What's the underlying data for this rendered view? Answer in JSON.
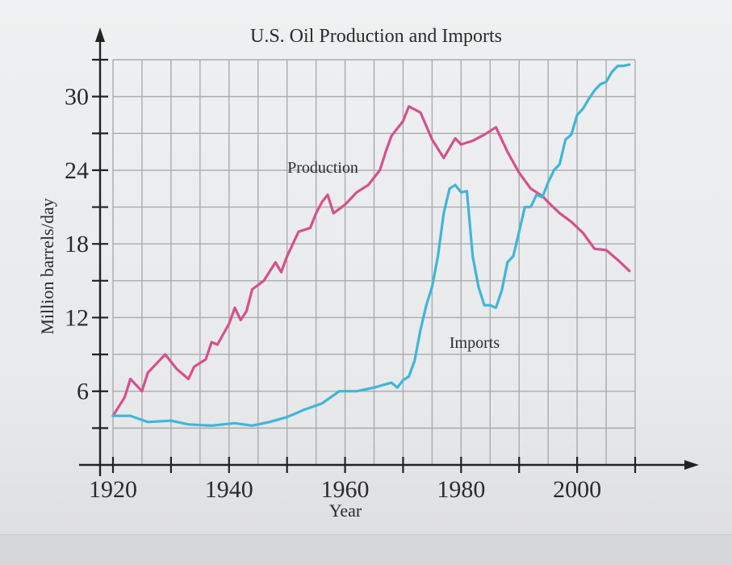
{
  "chart_data": {
    "type": "line",
    "title": "U.S. Oil Production and Imports",
    "xlabel": "Year",
    "ylabel": "Million barrels/day",
    "xlim": [
      1920,
      2010
    ],
    "ylim": [
      0,
      33
    ],
    "x_ticks": [
      1920,
      1940,
      1960,
      1980,
      2000
    ],
    "y_ticks": [
      6,
      12,
      18,
      24,
      30
    ],
    "grid": true,
    "legend": "none (series labeled directly on chart)",
    "series": [
      {
        "name": "Production",
        "color": "#d5508e",
        "points": [
          [
            1920,
            4.0
          ],
          [
            1922,
            5.5
          ],
          [
            1923,
            7.0
          ],
          [
            1925,
            6.0
          ],
          [
            1926,
            7.5
          ],
          [
            1928,
            8.5
          ],
          [
            1929,
            9.0
          ],
          [
            1931,
            7.8
          ],
          [
            1933,
            7.0
          ],
          [
            1934,
            8.0
          ],
          [
            1936,
            8.6
          ],
          [
            1937,
            10.0
          ],
          [
            1938,
            9.8
          ],
          [
            1940,
            11.5
          ],
          [
            1941,
            12.8
          ],
          [
            1942,
            11.8
          ],
          [
            1943,
            12.5
          ],
          [
            1944,
            14.3
          ],
          [
            1946,
            15.0
          ],
          [
            1948,
            16.5
          ],
          [
            1949,
            15.7
          ],
          [
            1950,
            17.0
          ],
          [
            1952,
            19.0
          ],
          [
            1954,
            19.3
          ],
          [
            1955,
            20.5
          ],
          [
            1956,
            21.4
          ],
          [
            1957,
            22.0
          ],
          [
            1958,
            20.5
          ],
          [
            1960,
            21.2
          ],
          [
            1962,
            22.2
          ],
          [
            1964,
            22.8
          ],
          [
            1966,
            24.0
          ],
          [
            1967,
            25.5
          ],
          [
            1968,
            26.8
          ],
          [
            1970,
            28.0
          ],
          [
            1971,
            29.2
          ],
          [
            1973,
            28.7
          ],
          [
            1975,
            26.5
          ],
          [
            1977,
            25.0
          ],
          [
            1979,
            26.6
          ],
          [
            1980,
            26.1
          ],
          [
            1982,
            26.4
          ],
          [
            1984,
            26.9
          ],
          [
            1986,
            27.5
          ],
          [
            1988,
            25.5
          ],
          [
            1990,
            23.8
          ],
          [
            1992,
            22.5
          ],
          [
            1994,
            21.9
          ],
          [
            1995,
            21.4
          ],
          [
            1997,
            20.5
          ],
          [
            1999,
            19.8
          ],
          [
            2001,
            18.9
          ],
          [
            2003,
            17.6
          ],
          [
            2005,
            17.5
          ],
          [
            2007,
            16.7
          ],
          [
            2009,
            15.8
          ]
        ]
      },
      {
        "name": "Imports",
        "color": "#3fb6d8",
        "points": [
          [
            1920,
            4.0
          ],
          [
            1923,
            4.0
          ],
          [
            1926,
            3.5
          ],
          [
            1930,
            3.6
          ],
          [
            1933,
            3.3
          ],
          [
            1937,
            3.2
          ],
          [
            1941,
            3.4
          ],
          [
            1944,
            3.2
          ],
          [
            1947,
            3.5
          ],
          [
            1950,
            3.9
          ],
          [
            1953,
            4.5
          ],
          [
            1956,
            5.0
          ],
          [
            1959,
            6.0
          ],
          [
            1962,
            6.0
          ],
          [
            1965,
            6.3
          ],
          [
            1968,
            6.7
          ],
          [
            1969,
            6.3
          ],
          [
            1970,
            6.9
          ],
          [
            1971,
            7.2
          ],
          [
            1972,
            8.5
          ],
          [
            1973,
            11.0
          ],
          [
            1974,
            13.0
          ],
          [
            1975,
            14.5
          ],
          [
            1976,
            17.0
          ],
          [
            1977,
            20.5
          ],
          [
            1978,
            22.5
          ],
          [
            1979,
            22.8
          ],
          [
            1980,
            22.2
          ],
          [
            1981,
            22.3
          ],
          [
            1982,
            17.0
          ],
          [
            1983,
            14.5
          ],
          [
            1984,
            13.0
          ],
          [
            1985,
            13.0
          ],
          [
            1986,
            12.8
          ],
          [
            1987,
            14.2
          ],
          [
            1988,
            16.5
          ],
          [
            1989,
            17.0
          ],
          [
            1990,
            19.0
          ],
          [
            1991,
            21.0
          ],
          [
            1992,
            21.0
          ],
          [
            1993,
            22.0
          ],
          [
            1994,
            21.8
          ],
          [
            1995,
            23.0
          ],
          [
            1996,
            24.0
          ],
          [
            1997,
            24.5
          ],
          [
            1998,
            26.5
          ],
          [
            1999,
            26.9
          ],
          [
            2000,
            28.5
          ],
          [
            2001,
            29.0
          ],
          [
            2002,
            29.8
          ],
          [
            2003,
            30.5
          ],
          [
            2004,
            31.0
          ],
          [
            2005,
            31.2
          ],
          [
            2006,
            32.0
          ],
          [
            2007,
            32.5
          ],
          [
            2008,
            32.5
          ],
          [
            2009,
            32.6
          ]
        ]
      }
    ]
  }
}
